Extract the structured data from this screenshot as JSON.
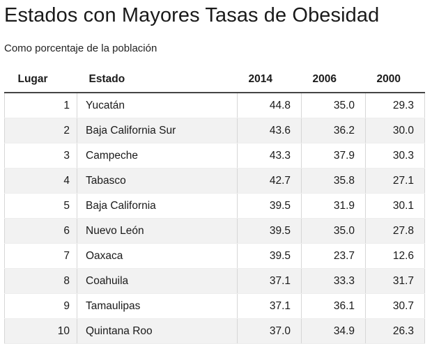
{
  "header": {
    "title": "Estados con Mayores Tasas de Obesidad",
    "subtitle": "Como porcentaje de la población"
  },
  "chart_data": {
    "type": "table",
    "title": "Estados con Mayores Tasas de Obesidad",
    "subtitle": "Como porcentaje de la población",
    "columns": [
      "Lugar",
      "Estado",
      "2014",
      "2006",
      "2000"
    ],
    "rows": [
      [
        "1",
        "Yucatán",
        "44.8",
        "35.0",
        "29.3"
      ],
      [
        "2",
        "Baja California Sur",
        "43.6",
        "36.2",
        "30.0"
      ],
      [
        "3",
        "Campeche",
        "43.3",
        "37.9",
        "30.3"
      ],
      [
        "4",
        "Tabasco",
        "42.7",
        "35.8",
        "27.1"
      ],
      [
        "5",
        "Baja California",
        "39.5",
        "31.9",
        "30.1"
      ],
      [
        "6",
        "Nuevo León",
        "39.5",
        "35.0",
        "27.8"
      ],
      [
        "7",
        "Oaxaca",
        "39.5",
        "23.7",
        "12.6"
      ],
      [
        "8",
        "Coahuila",
        "37.1",
        "33.3",
        "31.7"
      ],
      [
        "9",
        "Tamaulipas",
        "37.1",
        "36.1",
        "30.7"
      ],
      [
        "10",
        "Quintana Roo",
        "37.0",
        "34.9",
        "26.3"
      ]
    ]
  }
}
